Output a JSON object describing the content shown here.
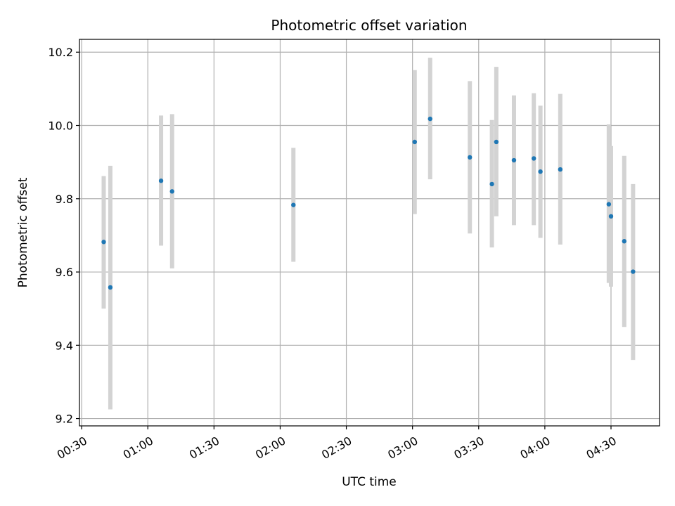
{
  "chart_data": {
    "type": "scatter",
    "title": "Photometric offset variation",
    "xlabel": "UTC time",
    "ylabel": "Photometric offset",
    "x_ticks": [
      "00:30",
      "01:00",
      "01:30",
      "02:00",
      "02:30",
      "03:00",
      "03:30",
      "04:00",
      "04:30"
    ],
    "y_ticks": [
      "9.2",
      "9.4",
      "9.6",
      "9.8",
      "10.0",
      "10.2"
    ],
    "xlim": [
      "00:29",
      "04:52"
    ],
    "ylim": [
      9.18,
      10.235
    ],
    "grid": true,
    "marker_color": "#1f77b4",
    "errorbar_color": "#d3d3d3",
    "series": [
      {
        "x": [
          "00:40",
          "00:43",
          "01:06",
          "01:11",
          "02:06",
          "03:01",
          "03:08",
          "03:26",
          "03:36",
          "03:38",
          "03:46",
          "03:55",
          "03:58",
          "04:07",
          "04:29",
          "04:30",
          "04:36",
          "04:40"
        ],
        "y": [
          9.682,
          9.558,
          9.849,
          9.82,
          9.783,
          9.955,
          10.018,
          9.913,
          9.84,
          9.955,
          9.905,
          9.91,
          9.874,
          9.88,
          9.785,
          9.752,
          9.684,
          9.601
        ],
        "y_low": [
          9.5,
          9.225,
          9.672,
          9.61,
          9.628,
          9.758,
          9.853,
          9.705,
          9.667,
          9.752,
          9.728,
          9.728,
          9.693,
          9.675,
          9.57,
          9.56,
          9.45,
          9.36
        ],
        "y_high": [
          9.862,
          9.89,
          10.027,
          10.031,
          9.939,
          10.151,
          10.185,
          10.121,
          10.015,
          10.16,
          10.082,
          10.088,
          10.054,
          10.086,
          10.003,
          9.944,
          9.917,
          9.84
        ]
      }
    ]
  }
}
